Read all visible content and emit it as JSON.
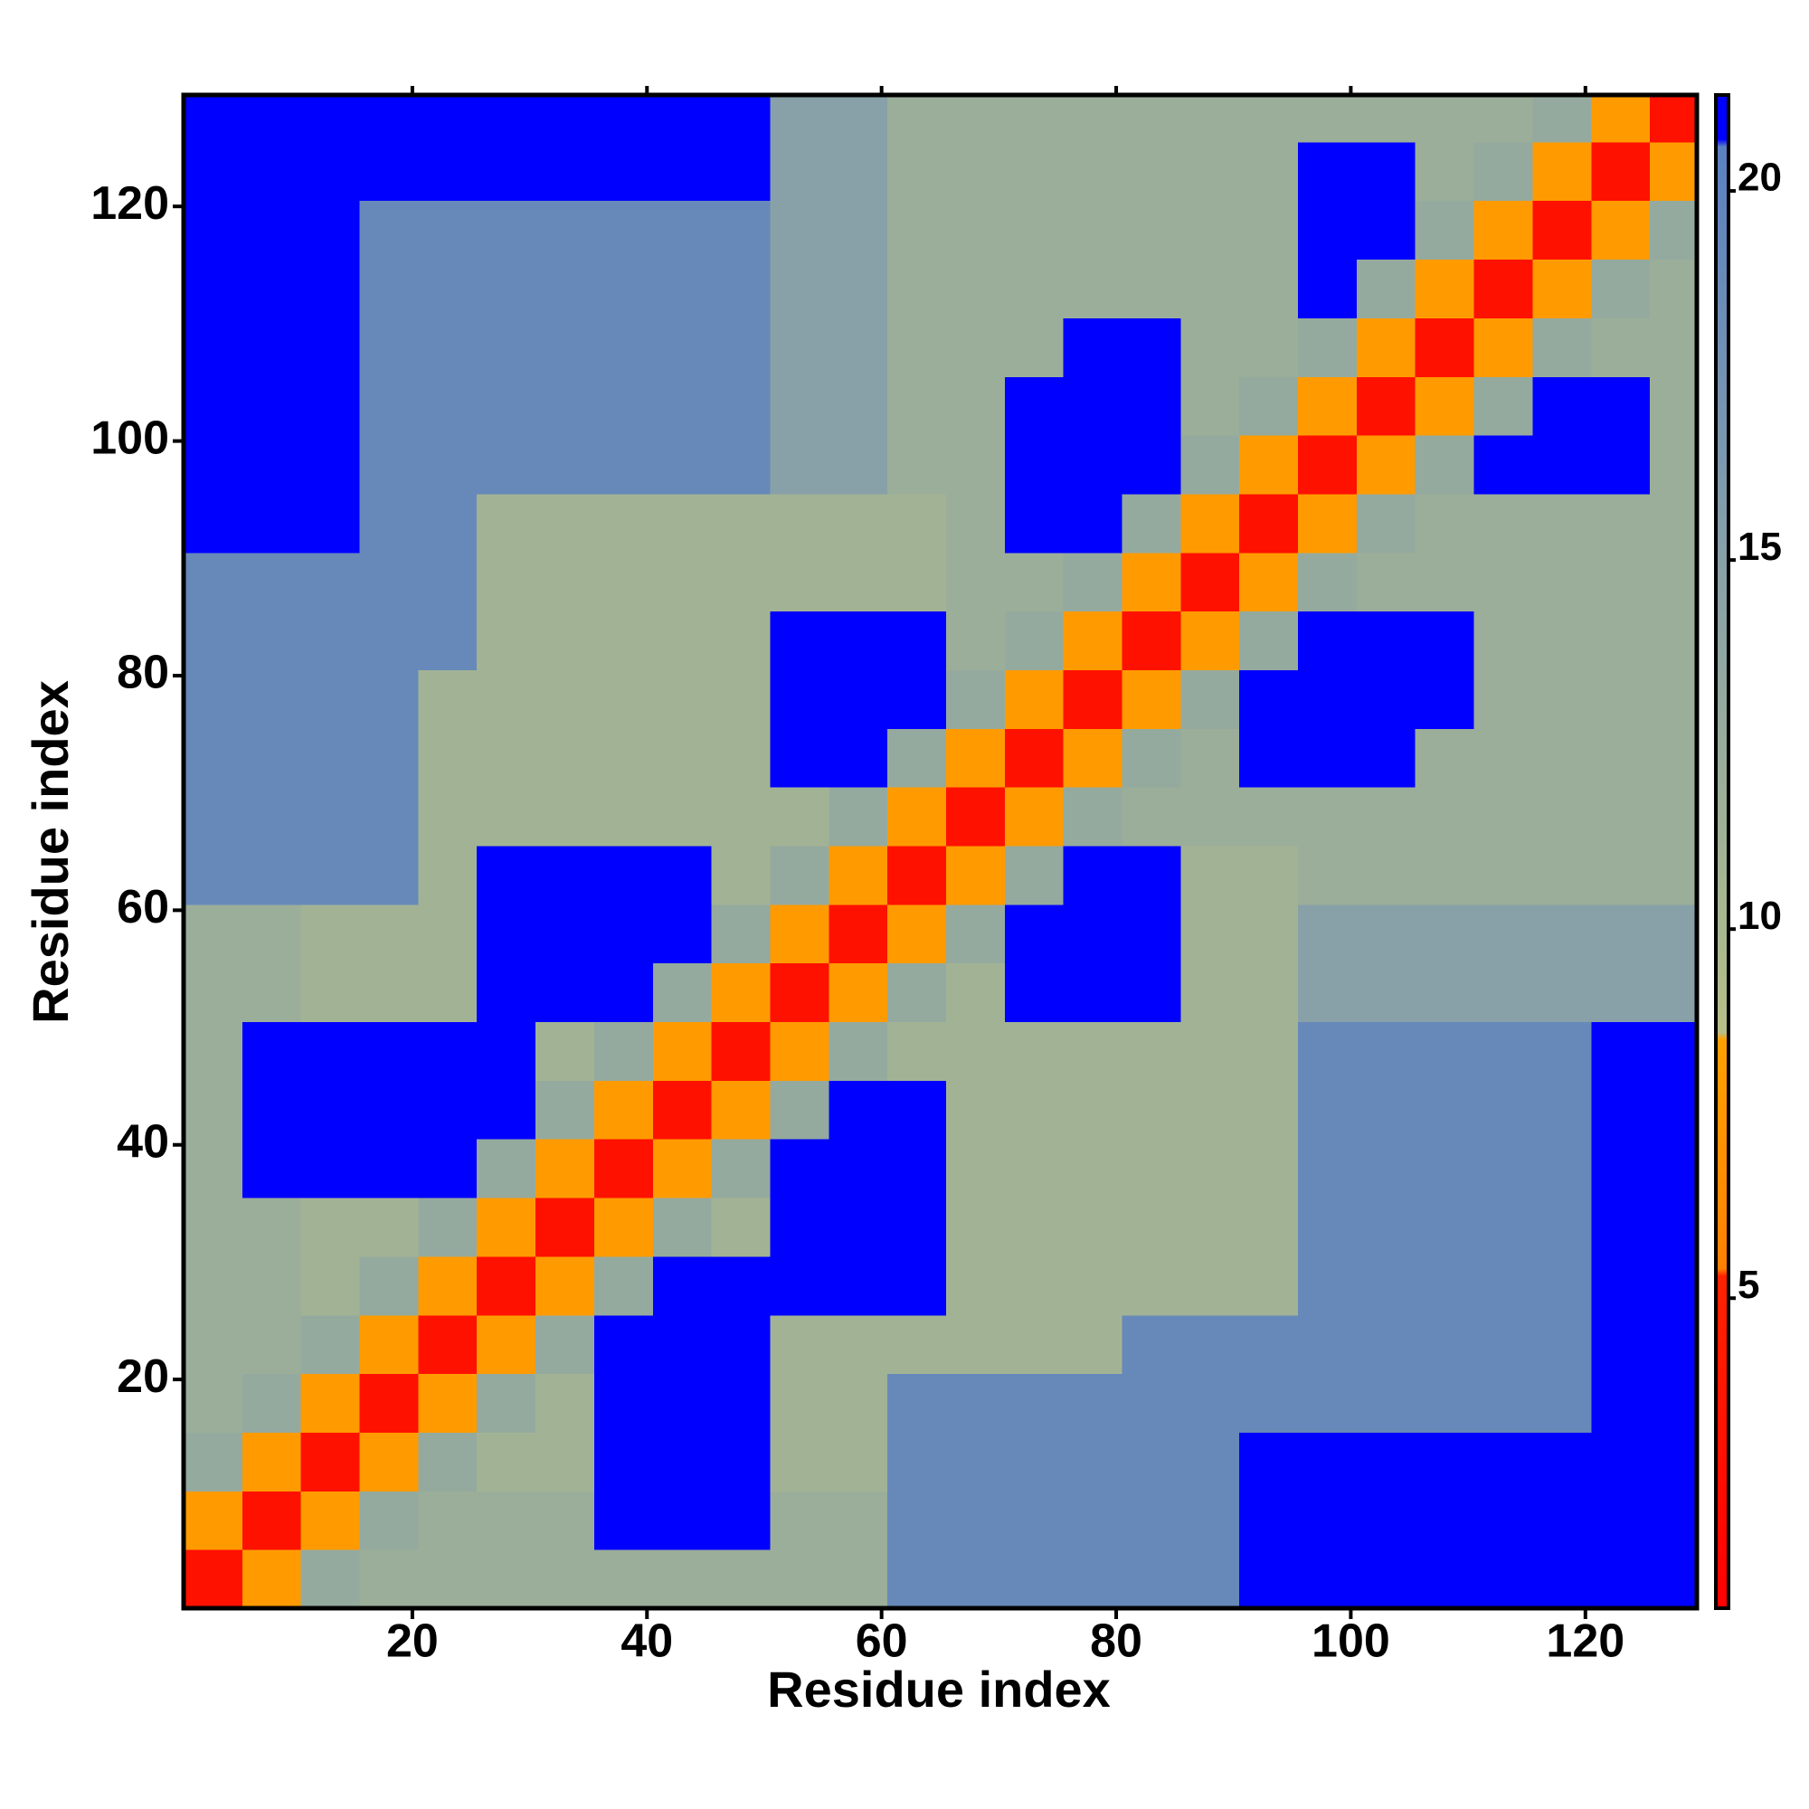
{
  "chart_data": {
    "type": "heatmap",
    "x_label": "Residue index",
    "y_label": "Residue index",
    "xlim": [
      0.5,
      129.5
    ],
    "ylim": [
      0.5,
      129.5
    ],
    "xticks": [
      20,
      40,
      60,
      80,
      100,
      120
    ],
    "yticks": [
      20,
      40,
      60,
      80,
      100,
      120
    ],
    "xbins": [
      0.5,
      5.5,
      10.5,
      15.5,
      20.5,
      25.5,
      30.5,
      35.5,
      40.5,
      45.5,
      50.5,
      55.5,
      60.5,
      65.5,
      70.5,
      75.5,
      80.5,
      85.5,
      90.5,
      95.5,
      100.5,
      105.5,
      110.5,
      115.5,
      120.5,
      125.5,
      129.5
    ],
    "ybins": [
      0.5,
      5.5,
      10.5,
      15.5,
      20.5,
      25.5,
      30.5,
      35.5,
      40.5,
      45.5,
      50.5,
      55.5,
      60.5,
      65.5,
      70.5,
      75.5,
      80.5,
      85.5,
      90.5,
      95.5,
      100.5,
      105.5,
      110.5,
      115.5,
      120.5,
      125.5,
      129.5
    ],
    "zlim": [
      0.8,
      21.3
    ],
    "zticks": [
      5,
      10,
      15,
      20
    ],
    "colorscale": [
      [
        0.8,
        "#ff0000"
      ],
      [
        5.3,
        "#ff2200"
      ],
      [
        5.4,
        "#ff8000"
      ],
      [
        8.5,
        "#ffa000"
      ],
      [
        8.6,
        "#b8be88"
      ],
      [
        10,
        "#a8b890"
      ],
      [
        15,
        "#88a0a8"
      ],
      [
        20.6,
        "#5a80c0"
      ],
      [
        20.7,
        "#0000ff"
      ],
      [
        21.3,
        "#0000ff"
      ]
    ],
    "z": [
      [
        3,
        8,
        13,
        12,
        12,
        12,
        12,
        12,
        12,
        12,
        12,
        12,
        19,
        19,
        19,
        19,
        19,
        19,
        21,
        21,
        21,
        21,
        21,
        21,
        21,
        21
      ],
      [
        8,
        3,
        8,
        13,
        12,
        12,
        12,
        21,
        21,
        21,
        12,
        12,
        19,
        19,
        19,
        19,
        19,
        19,
        21,
        21,
        21,
        21,
        21,
        21,
        21,
        21
      ],
      [
        13,
        8,
        3,
        8,
        13,
        11,
        11,
        21,
        21,
        21,
        11,
        11,
        19,
        19,
        19,
        19,
        19,
        19,
        21,
        21,
        21,
        21,
        21,
        21,
        21,
        21
      ],
      [
        12,
        13,
        8,
        3,
        8,
        13,
        11,
        21,
        21,
        21,
        11,
        11,
        19,
        19,
        19,
        19,
        19,
        19,
        19,
        19,
        19,
        19,
        19,
        19,
        21,
        21
      ],
      [
        12,
        12,
        13,
        8,
        3,
        8,
        13,
        21,
        21,
        21,
        11,
        11,
        11,
        11,
        11,
        11,
        19,
        19,
        19,
        19,
        19,
        19,
        19,
        19,
        21,
        21
      ],
      [
        12,
        12,
        11,
        13,
        8,
        3,
        8,
        13,
        21,
        21,
        21,
        21,
        21,
        11,
        11,
        11,
        11,
        11,
        11,
        19,
        19,
        19,
        19,
        19,
        21,
        21
      ],
      [
        12,
        12,
        11,
        11,
        13,
        8,
        3,
        8,
        13,
        11,
        21,
        21,
        21,
        11,
        11,
        11,
        11,
        11,
        11,
        19,
        19,
        19,
        19,
        19,
        21,
        21
      ],
      [
        12,
        21,
        21,
        21,
        21,
        13,
        8,
        3,
        8,
        13,
        21,
        21,
        21,
        11,
        11,
        11,
        11,
        11,
        11,
        19,
        19,
        19,
        19,
        19,
        21,
        21
      ],
      [
        12,
        21,
        21,
        21,
        21,
        21,
        13,
        8,
        3,
        8,
        13,
        21,
        21,
        11,
        11,
        11,
        11,
        11,
        11,
        19,
        19,
        19,
        19,
        19,
        21,
        21
      ],
      [
        12,
        21,
        21,
        21,
        21,
        21,
        11,
        13,
        8,
        3,
        8,
        13,
        11,
        11,
        11,
        11,
        11,
        11,
        11,
        19,
        19,
        19,
        19,
        19,
        21,
        21
      ],
      [
        12,
        12,
        11,
        11,
        11,
        21,
        21,
        21,
        13,
        8,
        3,
        8,
        13,
        11,
        21,
        21,
        21,
        11,
        11,
        15,
        15,
        15,
        15,
        15,
        15,
        15
      ],
      [
        12,
        12,
        11,
        11,
        11,
        21,
        21,
        21,
        21,
        13,
        8,
        3,
        8,
        13,
        21,
        21,
        21,
        11,
        11,
        15,
        15,
        15,
        15,
        15,
        15,
        15
      ],
      [
        19,
        19,
        19,
        19,
        11,
        21,
        21,
        21,
        21,
        11,
        13,
        8,
        3,
        8,
        13,
        21,
        21,
        11,
        11,
        12,
        12,
        12,
        12,
        12,
        12,
        12
      ],
      [
        19,
        19,
        19,
        19,
        11,
        11,
        11,
        11,
        11,
        11,
        11,
        13,
        8,
        3,
        8,
        13,
        12,
        12,
        12,
        12,
        12,
        12,
        12,
        12,
        12,
        12
      ],
      [
        19,
        19,
        19,
        19,
        11,
        11,
        11,
        11,
        11,
        11,
        21,
        21,
        13,
        8,
        3,
        8,
        13,
        12,
        21,
        21,
        21,
        12,
        12,
        12,
        12,
        12
      ],
      [
        19,
        19,
        19,
        19,
        11,
        11,
        11,
        11,
        11,
        11,
        21,
        21,
        21,
        13,
        8,
        3,
        8,
        13,
        21,
        21,
        21,
        21,
        12,
        12,
        12,
        12
      ],
      [
        19,
        19,
        19,
        19,
        19,
        11,
        11,
        11,
        11,
        11,
        21,
        21,
        21,
        12,
        13,
        8,
        3,
        8,
        13,
        21,
        21,
        21,
        12,
        12,
        12,
        12
      ],
      [
        19,
        19,
        19,
        19,
        19,
        11,
        11,
        11,
        11,
        11,
        11,
        11,
        11,
        12,
        12,
        13,
        8,
        3,
        8,
        13,
        12,
        12,
        12,
        12,
        12,
        12
      ],
      [
        21,
        21,
        21,
        19,
        19,
        11,
        11,
        11,
        11,
        11,
        11,
        11,
        11,
        12,
        21,
        21,
        13,
        8,
        3,
        8,
        13,
        12,
        12,
        12,
        12,
        12
      ],
      [
        21,
        21,
        21,
        19,
        19,
        19,
        19,
        19,
        19,
        19,
        15,
        15,
        12,
        12,
        21,
        21,
        21,
        13,
        8,
        3,
        8,
        13,
        21,
        21,
        21,
        12
      ],
      [
        21,
        21,
        21,
        19,
        19,
        19,
        19,
        19,
        19,
        19,
        15,
        15,
        12,
        12,
        21,
        21,
        21,
        12,
        13,
        8,
        3,
        8,
        13,
        21,
        21,
        12
      ],
      [
        21,
        21,
        21,
        19,
        19,
        19,
        19,
        19,
        19,
        19,
        15,
        15,
        12,
        12,
        12,
        21,
        21,
        12,
        12,
        13,
        8,
        3,
        8,
        13,
        12,
        12
      ],
      [
        21,
        21,
        21,
        19,
        19,
        19,
        19,
        19,
        19,
        19,
        15,
        15,
        12,
        12,
        12,
        12,
        12,
        12,
        12,
        21,
        13,
        8,
        3,
        8,
        13,
        12
      ],
      [
        21,
        21,
        21,
        19,
        19,
        19,
        19,
        19,
        19,
        19,
        15,
        15,
        12,
        12,
        12,
        12,
        12,
        12,
        12,
        21,
        21,
        13,
        8,
        3,
        8,
        13
      ],
      [
        21,
        21,
        21,
        21,
        21,
        21,
        21,
        21,
        21,
        21,
        15,
        15,
        12,
        12,
        12,
        12,
        12,
        12,
        12,
        21,
        21,
        12,
        13,
        8,
        3,
        8
      ],
      [
        21,
        21,
        21,
        21,
        21,
        21,
        21,
        21,
        21,
        21,
        15,
        15,
        12,
        12,
        12,
        12,
        12,
        12,
        12,
        12,
        12,
        12,
        12,
        13,
        8,
        3
      ]
    ]
  }
}
